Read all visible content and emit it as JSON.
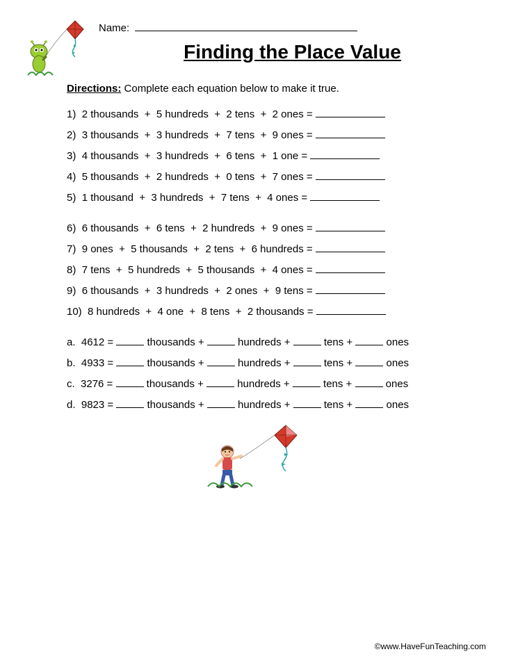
{
  "header": {
    "name_label": "Name:",
    "title": "Finding the Place Value",
    "directions_label": "Directions:",
    "directions_text": " Complete each equation below to make it true."
  },
  "section1": [
    {
      "n": "1)",
      "parts": [
        "2 thousands",
        "5 hundreds",
        "2 tens",
        "2 ones"
      ]
    },
    {
      "n": "2)",
      "parts": [
        "3 thousands",
        "3 hundreds",
        "7 tens",
        "9 ones"
      ]
    },
    {
      "n": "3)",
      "parts": [
        "4 thousands",
        "3 hundreds",
        "6 tens",
        "1 one"
      ]
    },
    {
      "n": "4)",
      "parts": [
        "5 thousands",
        "2 hundreds",
        "0 tens",
        "7 ones"
      ]
    },
    {
      "n": "5)",
      "parts": [
        "1 thousand",
        "3 hundreds",
        "7 tens",
        "4 ones"
      ]
    }
  ],
  "section2": [
    {
      "n": "6)",
      "parts": [
        "6 thousands",
        "6 tens",
        "2 hundreds",
        "9 ones"
      ]
    },
    {
      "n": "7)",
      "parts": [
        "9 ones",
        "5 thousands",
        "2 tens",
        "6 hundreds"
      ]
    },
    {
      "n": "8)",
      "parts": [
        "7 tens",
        "5 hundreds",
        "5 thousands",
        "4 ones"
      ]
    },
    {
      "n": "9)",
      "parts": [
        "6 thousands",
        "3 hundreds",
        "2 ones",
        "9 tens"
      ]
    },
    {
      "n": "10)",
      "parts": [
        "8 hundreds",
        "4 one",
        "8 tens",
        "2 thousands"
      ]
    }
  ],
  "section3": [
    {
      "n": "a.",
      "num": "4612",
      "units": [
        "thousands",
        "hundreds",
        "tens",
        "ones"
      ]
    },
    {
      "n": "b.",
      "num": "4933",
      "units": [
        "thousands",
        "hundreds",
        "tens",
        "ones"
      ]
    },
    {
      "n": "c.",
      "num": "3276",
      "units": [
        "thousands",
        "hundreds",
        "tens",
        "ones"
      ]
    },
    {
      "n": "d.",
      "num": "9823",
      "units": [
        "thousands",
        "hundreds",
        "tens",
        "ones"
      ]
    }
  ],
  "footer": {
    "copyright": "©www.HaveFunTeaching.com"
  },
  "art": {
    "top_mascot": "alien-kite-illustration",
    "bottom_mascot": "boy-kite-illustration",
    "kite_red": "#d63a2a",
    "kite_teal": "#2aa9a0",
    "grass_green": "#3a9a3a",
    "alien_green": "#9acd32",
    "boy_skin": "#f4c79a",
    "boy_shirt": "#d64a4a",
    "boy_pants": "#3a5aa9"
  }
}
